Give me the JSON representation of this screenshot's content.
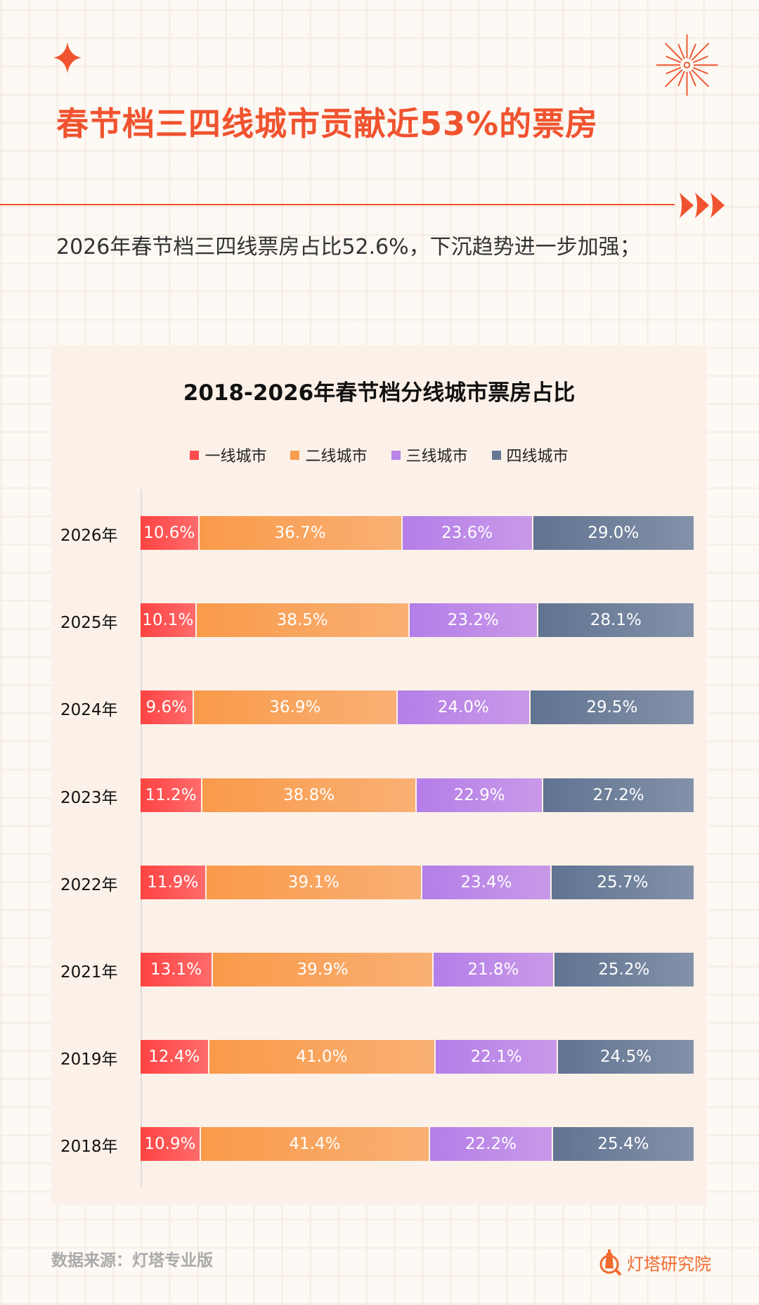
{
  "header": {
    "title": "春节档三四线城市贡献近53%的票房",
    "subtitle": "2026年春节档三四线票房占比52.6%，下沉趋势进一步加强；"
  },
  "colors": {
    "accent": "#f0532f",
    "tier1": "#ff4d4d",
    "tier2": "#f99d50",
    "tier3": "#b983e8",
    "tier4": "#667894"
  },
  "chart_data": {
    "type": "bar",
    "orientation": "horizontal-stacked-100",
    "title": "2018-2026年春节档分线城市票房占比",
    "legend_position": "top",
    "categories": [
      "2026年",
      "2025年",
      "2024年",
      "2023年",
      "2022年",
      "2021年",
      "2019年",
      "2018年"
    ],
    "series": [
      {
        "name": "一线城市",
        "values": [
          10.6,
          10.1,
          9.6,
          11.2,
          11.9,
          13.1,
          12.4,
          10.9
        ]
      },
      {
        "name": "二线城市",
        "values": [
          36.7,
          38.5,
          36.9,
          38.8,
          39.1,
          39.9,
          41.0,
          41.4
        ]
      },
      {
        "name": "三线城市",
        "values": [
          23.6,
          23.2,
          24.0,
          22.9,
          23.4,
          21.8,
          22.1,
          22.2
        ]
      },
      {
        "name": "四线城市",
        "values": [
          29.0,
          28.1,
          29.5,
          27.2,
          25.7,
          25.2,
          24.5,
          25.4
        ]
      }
    ],
    "unit": "%"
  },
  "footer": {
    "source": "数据来源：灯塔专业版",
    "logo": "灯塔研究院"
  }
}
